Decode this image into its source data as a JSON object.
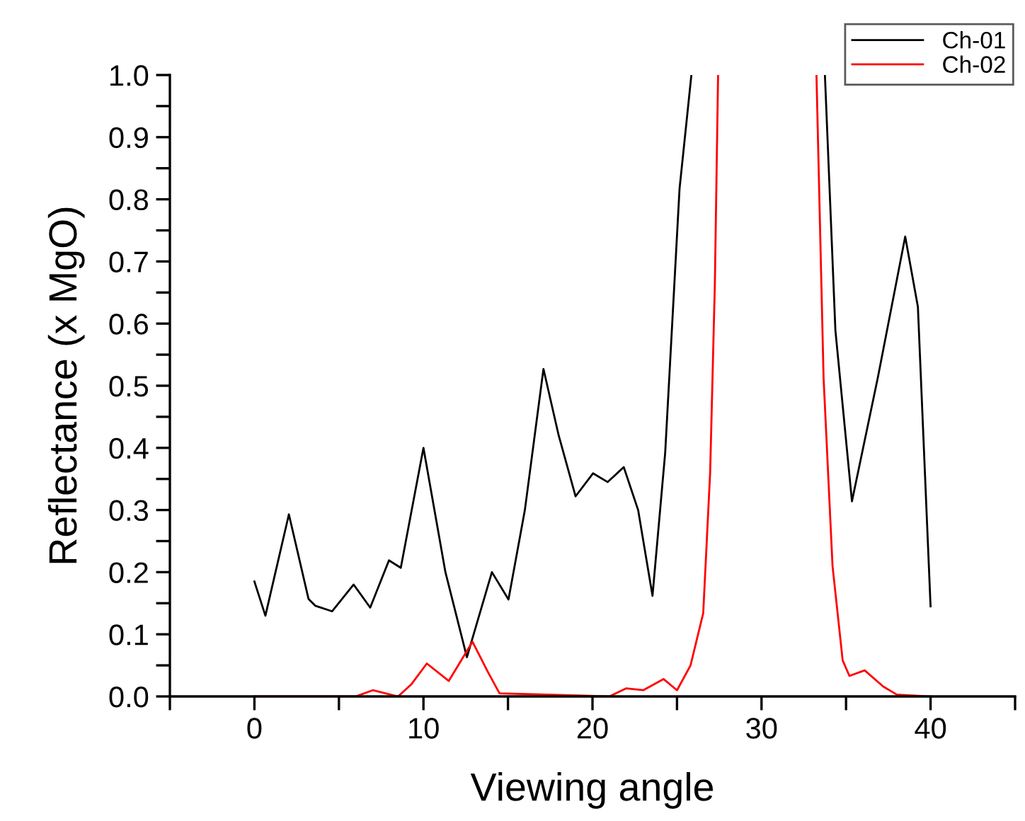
{
  "chart_data": {
    "type": "line",
    "xlabel": "Viewing angle",
    "ylabel": "Reflectance (x MgO)",
    "xlim": [
      -5,
      45
    ],
    "ylim": [
      0.0,
      1.0
    ],
    "xticks": [
      {
        "value": -5,
        "label": null
      },
      0,
      {
        "value": 5,
        "label": null
      },
      10,
      {
        "value": 15,
        "label": null
      },
      20,
      {
        "value": 25,
        "label": null
      },
      30,
      {
        "value": 35,
        "label": null
      },
      40,
      {
        "value": 45,
        "label": null
      }
    ],
    "yticks": [
      {
        "value": 0,
        "label": "0.0"
      },
      {
        "value": 0.05,
        "label": null
      },
      0.1,
      {
        "value": 0.15,
        "label": null
      },
      0.2,
      {
        "value": 0.25,
        "label": null
      },
      0.3,
      {
        "value": 0.35,
        "label": null
      },
      0.4,
      {
        "value": 0.45,
        "label": null
      },
      0.5,
      {
        "value": 0.55,
        "label": null
      },
      0.6,
      {
        "value": 0.65,
        "label": null
      },
      0.7,
      {
        "value": 0.75,
        "label": null
      },
      0.8,
      {
        "value": 0.85,
        "label": null
      },
      0.9,
      {
        "value": 0.95,
        "label": null
      },
      {
        "value": 1,
        "label": "1.0"
      }
    ],
    "grid": false,
    "legend": "top right",
    "marker": "none",
    "line_style": "solid",
    "series": [
      {
        "name": "Ch-01",
        "color": "#000000",
        "x": [
          0,
          0.65,
          2.04,
          3.2,
          3.6,
          4.6,
          5.87,
          6.85,
          7.96,
          8.66,
          10.0,
          11.3,
          12.57,
          14.05,
          15.03,
          16.0,
          17.1,
          18.0,
          19.0,
          20.03,
          20.9,
          21.85,
          22.7,
          23.55,
          24.3,
          25.15,
          25.85,
          30,
          33.75,
          34.37,
          35.35,
          36.88,
          38.5,
          39.25,
          40
        ],
        "values": [
          0.185,
          0.13,
          0.293,
          0.157,
          0.146,
          0.137,
          0.18,
          0.143,
          0.219,
          0.207,
          0.4,
          0.2,
          0.063,
          0.2,
          0.156,
          0.3,
          0.527,
          0.42,
          0.322,
          0.359,
          0.345,
          0.369,
          0.3,
          0.162,
          0.392,
          0.817,
          1.0,
          null,
          1.0,
          0.589,
          0.314,
          0.513,
          0.74,
          0.627,
          0.145
        ]
      },
      {
        "name": "Ch-02",
        "color": "#ff0000",
        "x": [
          0,
          6,
          7,
          8.5,
          9.3,
          10.2,
          11.5,
          12.9,
          13.8,
          14.5,
          21,
          22,
          23,
          24.2,
          25,
          25.8,
          26.55,
          26.96,
          27.24,
          27.43,
          30,
          33.25,
          33.67,
          34.2,
          34.8,
          35.2,
          36.1,
          37.2,
          38.0,
          40
        ],
        "values": [
          0.0,
          0.0,
          0.01,
          0.0,
          0.02,
          0.053,
          0.025,
          0.088,
          0.04,
          0.005,
          0.0,
          0.013,
          0.01,
          0.028,
          0.01,
          0.05,
          0.134,
          0.36,
          0.665,
          1.0,
          null,
          1.0,
          0.513,
          0.21,
          0.058,
          0.033,
          0.042,
          0.016,
          0.003,
          0.0
        ]
      }
    ]
  }
}
